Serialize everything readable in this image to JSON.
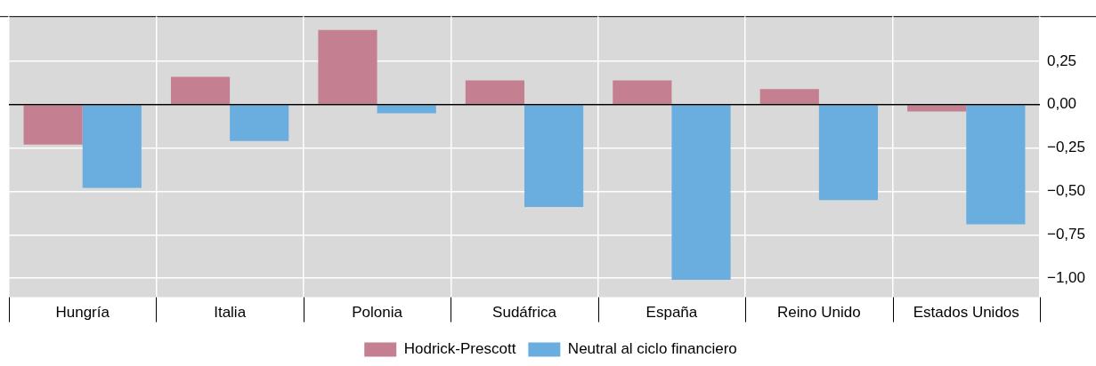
{
  "chart_data": {
    "type": "bar",
    "categories": [
      "Hungría",
      "Italia",
      "Polonia",
      "Sudáfrica",
      "España",
      "Reino Unido",
      "Estados Unidos"
    ],
    "series": [
      {
        "name": "Hodrick-Prescott",
        "color": "#c48090",
        "values": [
          -0.23,
          0.16,
          0.43,
          0.14,
          0.14,
          0.09,
          -0.04
        ]
      },
      {
        "name": "Neutral al ciclo financiero",
        "color": "#6aaee0",
        "values": [
          -0.48,
          -0.21,
          -0.05,
          -0.59,
          -1.01,
          -0.55,
          -0.69
        ]
      }
    ],
    "ylim": [
      -1.11,
      0.51
    ],
    "yticks": [
      {
        "value": 0.25,
        "label": "0,25"
      },
      {
        "value": 0,
        "label": "0,00"
      },
      {
        "value": -0.25,
        "label": "−0,25"
      },
      {
        "value": -0.5,
        "label": "−0,50"
      },
      {
        "value": -0.75,
        "label": "−0,75"
      },
      {
        "value": -1,
        "label": "−1,00"
      }
    ],
    "grid": true,
    "legend": "bottom",
    "ref_lines": [
      {
        "axis": "y",
        "value": 0,
        "color": "#000000"
      }
    ]
  }
}
